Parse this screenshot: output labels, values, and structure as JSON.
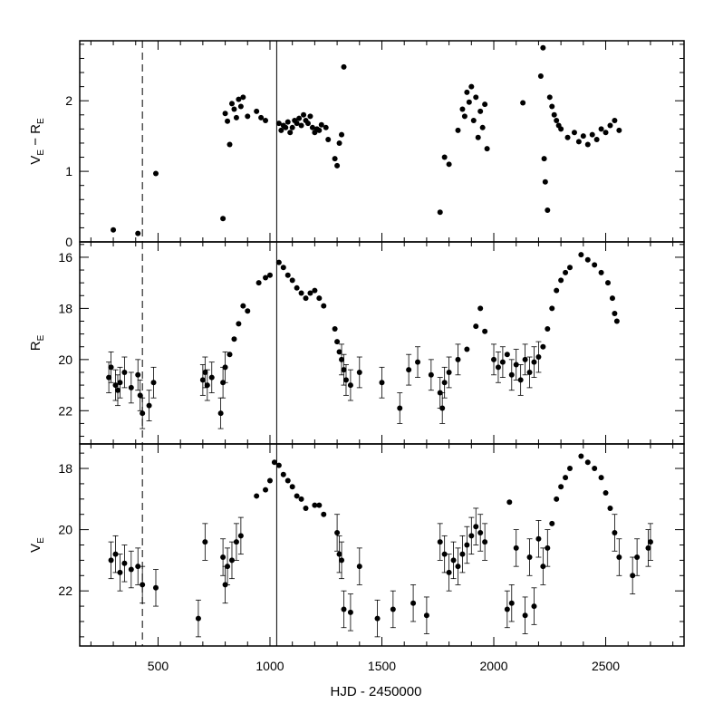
{
  "chart_data": {
    "type": "scatter",
    "x_ticks": [
      "500",
      "1000",
      "1500",
      "2000",
      "2500"
    ],
    "x_tick_values": [
      500,
      1000,
      1500,
      2000,
      2500
    ],
    "xlim": [
      150,
      2850
    ],
    "x_minor_step": 100,
    "xlabel": "HJD - 2450000",
    "dashed_line_x": 430,
    "solid_line_x": 1030,
    "panels": [
      {
        "id": "color",
        "ylabel": "V",
        "ylabel_sub1": "E",
        "ylabel_mid": " − R",
        "ylabel_sub2": "E",
        "ylim": [
          0,
          2.85
        ],
        "y_inverted": false,
        "y_ticks": [
          "0",
          "1",
          "2"
        ],
        "y_tick_values": [
          0,
          1,
          2
        ],
        "y_minor_step": 0.2,
        "points": [
          [
            300,
            0.17
          ],
          [
            410,
            0.12
          ],
          [
            490,
            0.97
          ],
          [
            790,
            0.33
          ],
          [
            800,
            1.82
          ],
          [
            810,
            1.71
          ],
          [
            820,
            1.38
          ],
          [
            830,
            1.96
          ],
          [
            840,
            1.88
          ],
          [
            850,
            1.76
          ],
          [
            860,
            2.02
          ],
          [
            870,
            1.92
          ],
          [
            880,
            2.05
          ],
          [
            900,
            1.78
          ],
          [
            940,
            1.85
          ],
          [
            960,
            1.76
          ],
          [
            980,
            1.72
          ],
          [
            1040,
            1.68
          ],
          [
            1050,
            1.58
          ],
          [
            1060,
            1.65
          ],
          [
            1070,
            1.62
          ],
          [
            1080,
            1.7
          ],
          [
            1090,
            1.55
          ],
          [
            1100,
            1.62
          ],
          [
            1110,
            1.72
          ],
          [
            1120,
            1.68
          ],
          [
            1130,
            1.75
          ],
          [
            1140,
            1.65
          ],
          [
            1150,
            1.8
          ],
          [
            1160,
            1.72
          ],
          [
            1170,
            1.68
          ],
          [
            1180,
            1.78
          ],
          [
            1190,
            1.62
          ],
          [
            1200,
            1.55
          ],
          [
            1210,
            1.6
          ],
          [
            1220,
            1.58
          ],
          [
            1230,
            1.66
          ],
          [
            1250,
            1.62
          ],
          [
            1260,
            1.45
          ],
          [
            1290,
            1.18
          ],
          [
            1300,
            1.08
          ],
          [
            1310,
            1.4
          ],
          [
            1320,
            1.52
          ],
          [
            1330,
            2.48
          ],
          [
            1760,
            0.42
          ],
          [
            1780,
            1.2
          ],
          [
            1800,
            1.1
          ],
          [
            1840,
            1.58
          ],
          [
            1860,
            1.88
          ],
          [
            1870,
            1.78
          ],
          [
            1880,
            2.12
          ],
          [
            1890,
            1.98
          ],
          [
            1900,
            2.2
          ],
          [
            1910,
            1.72
          ],
          [
            1920,
            2.05
          ],
          [
            1930,
            1.48
          ],
          [
            1940,
            1.85
          ],
          [
            1950,
            1.62
          ],
          [
            1960,
            1.95
          ],
          [
            1970,
            1.32
          ],
          [
            2130,
            1.97
          ],
          [
            2210,
            2.35
          ],
          [
            2220,
            2.75
          ],
          [
            2225,
            1.18
          ],
          [
            2230,
            0.85
          ],
          [
            2240,
            0.45
          ],
          [
            2250,
            2.05
          ],
          [
            2260,
            1.92
          ],
          [
            2270,
            1.8
          ],
          [
            2280,
            1.72
          ],
          [
            2290,
            1.65
          ],
          [
            2300,
            1.6
          ],
          [
            2330,
            1.48
          ],
          [
            2360,
            1.55
          ],
          [
            2380,
            1.42
          ],
          [
            2400,
            1.5
          ],
          [
            2420,
            1.38
          ],
          [
            2440,
            1.52
          ],
          [
            2460,
            1.45
          ],
          [
            2480,
            1.6
          ],
          [
            2500,
            1.55
          ],
          [
            2520,
            1.65
          ],
          [
            2540,
            1.72
          ],
          [
            2560,
            1.58
          ]
        ]
      },
      {
        "id": "r",
        "ylabel": "R",
        "ylabel_sub1": "E",
        "ylim": [
          23.3,
          15.4
        ],
        "y_inverted": true,
        "y_ticks": [
          "16",
          "18",
          "20",
          "22"
        ],
        "y_tick_values": [
          16,
          18,
          20,
          22
        ],
        "y_minor_step": 0.5,
        "points": [
          [
            280,
            20.7
          ],
          [
            290,
            20.3
          ],
          [
            310,
            21.0
          ],
          [
            320,
            21.2
          ],
          [
            330,
            20.9
          ],
          [
            350,
            20.5
          ],
          [
            380,
            21.1
          ],
          [
            410,
            20.6
          ],
          [
            420,
            21.4
          ],
          [
            430,
            22.1
          ],
          [
            460,
            21.8
          ],
          [
            480,
            20.9
          ],
          [
            700,
            20.8
          ],
          [
            710,
            20.5
          ],
          [
            720,
            21.0
          ],
          [
            740,
            20.7
          ],
          [
            780,
            22.1
          ],
          [
            790,
            20.9
          ],
          [
            800,
            20.3
          ],
          [
            820,
            19.8
          ],
          [
            840,
            19.2
          ],
          [
            860,
            18.6
          ],
          [
            880,
            17.9
          ],
          [
            900,
            18.1
          ],
          [
            950,
            17.0
          ],
          [
            980,
            16.8
          ],
          [
            1000,
            16.7
          ],
          [
            1040,
            16.2
          ],
          [
            1060,
            16.4
          ],
          [
            1080,
            16.7
          ],
          [
            1100,
            16.9
          ],
          [
            1120,
            17.2
          ],
          [
            1140,
            17.4
          ],
          [
            1160,
            17.6
          ],
          [
            1180,
            17.4
          ],
          [
            1200,
            17.3
          ],
          [
            1220,
            17.6
          ],
          [
            1240,
            17.9
          ],
          [
            1290,
            18.8
          ],
          [
            1300,
            19.3
          ],
          [
            1310,
            19.7
          ],
          [
            1320,
            20.0
          ],
          [
            1330,
            20.4
          ],
          [
            1340,
            20.8
          ],
          [
            1360,
            21.0
          ],
          [
            1400,
            20.5
          ],
          [
            1500,
            20.9
          ],
          [
            1580,
            21.9
          ],
          [
            1620,
            20.4
          ],
          [
            1660,
            20.1
          ],
          [
            1720,
            20.6
          ],
          [
            1760,
            21.3
          ],
          [
            1770,
            21.9
          ],
          [
            1780,
            20.9
          ],
          [
            1800,
            20.5
          ],
          [
            1840,
            20.0
          ],
          [
            1880,
            19.6
          ],
          [
            1920,
            18.7
          ],
          [
            1940,
            18.0
          ],
          [
            1960,
            18.9
          ],
          [
            2000,
            20.0
          ],
          [
            2020,
            20.3
          ],
          [
            2040,
            20.1
          ],
          [
            2060,
            19.8
          ],
          [
            2080,
            20.6
          ],
          [
            2100,
            20.2
          ],
          [
            2120,
            20.8
          ],
          [
            2140,
            20.0
          ],
          [
            2160,
            20.5
          ],
          [
            2180,
            20.1
          ],
          [
            2200,
            19.9
          ],
          [
            2220,
            19.5
          ],
          [
            2240,
            18.8
          ],
          [
            2260,
            18.0
          ],
          [
            2280,
            17.3
          ],
          [
            2300,
            16.9
          ],
          [
            2320,
            16.6
          ],
          [
            2340,
            16.4
          ],
          [
            2390,
            15.9
          ],
          [
            2420,
            16.1
          ],
          [
            2450,
            16.3
          ],
          [
            2480,
            16.6
          ],
          [
            2510,
            17.0
          ],
          [
            2530,
            17.6
          ],
          [
            2540,
            18.2
          ],
          [
            2550,
            18.5
          ]
        ]
      },
      {
        "id": "v",
        "ylabel": "V",
        "ylabel_sub1": "E",
        "ylim": [
          23.8,
          17.2
        ],
        "y_inverted": true,
        "y_ticks": [
          "18",
          "20",
          "22"
        ],
        "y_tick_values": [
          18,
          20,
          22
        ],
        "y_minor_step": 0.5,
        "points": [
          [
            290,
            21.0
          ],
          [
            310,
            20.8
          ],
          [
            330,
            21.4
          ],
          [
            350,
            21.1
          ],
          [
            380,
            21.3
          ],
          [
            410,
            21.2
          ],
          [
            430,
            21.8
          ],
          [
            490,
            21.9
          ],
          [
            680,
            22.9
          ],
          [
            710,
            20.4
          ],
          [
            790,
            20.9
          ],
          [
            800,
            21.8
          ],
          [
            810,
            21.2
          ],
          [
            830,
            21.0
          ],
          [
            850,
            20.4
          ],
          [
            870,
            20.2
          ],
          [
            940,
            18.9
          ],
          [
            980,
            18.7
          ],
          [
            1000,
            18.4
          ],
          [
            1020,
            17.8
          ],
          [
            1040,
            17.9
          ],
          [
            1060,
            18.2
          ],
          [
            1080,
            18.4
          ],
          [
            1100,
            18.6
          ],
          [
            1120,
            18.9
          ],
          [
            1140,
            19.0
          ],
          [
            1160,
            19.3
          ],
          [
            1200,
            19.2
          ],
          [
            1220,
            19.2
          ],
          [
            1240,
            19.5
          ],
          [
            1300,
            20.1
          ],
          [
            1310,
            20.8
          ],
          [
            1320,
            21.0
          ],
          [
            1330,
            22.6
          ],
          [
            1360,
            22.7
          ],
          [
            1400,
            21.2
          ],
          [
            1480,
            22.9
          ],
          [
            1550,
            22.6
          ],
          [
            1640,
            22.4
          ],
          [
            1700,
            22.8
          ],
          [
            1760,
            20.4
          ],
          [
            1780,
            20.8
          ],
          [
            1800,
            21.4
          ],
          [
            1820,
            21.0
          ],
          [
            1840,
            21.2
          ],
          [
            1860,
            20.8
          ],
          [
            1880,
            20.5
          ],
          [
            1900,
            20.2
          ],
          [
            1920,
            19.9
          ],
          [
            1940,
            20.1
          ],
          [
            1960,
            20.4
          ],
          [
            2060,
            22.6
          ],
          [
            2070,
            19.1
          ],
          [
            2080,
            22.4
          ],
          [
            2100,
            20.6
          ],
          [
            2140,
            22.8
          ],
          [
            2160,
            20.9
          ],
          [
            2180,
            22.5
          ],
          [
            2200,
            20.3
          ],
          [
            2220,
            21.2
          ],
          [
            2240,
            20.6
          ],
          [
            2260,
            19.8
          ],
          [
            2280,
            19.0
          ],
          [
            2300,
            18.6
          ],
          [
            2320,
            18.3
          ],
          [
            2340,
            18.0
          ],
          [
            2390,
            17.6
          ],
          [
            2420,
            17.8
          ],
          [
            2450,
            18.0
          ],
          [
            2480,
            18.3
          ],
          [
            2500,
            18.8
          ],
          [
            2520,
            19.3
          ],
          [
            2540,
            20.1
          ],
          [
            2560,
            20.9
          ],
          [
            2620,
            21.5
          ],
          [
            2640,
            20.9
          ],
          [
            2690,
            20.6
          ],
          [
            2700,
            20.4
          ]
        ]
      }
    ]
  }
}
